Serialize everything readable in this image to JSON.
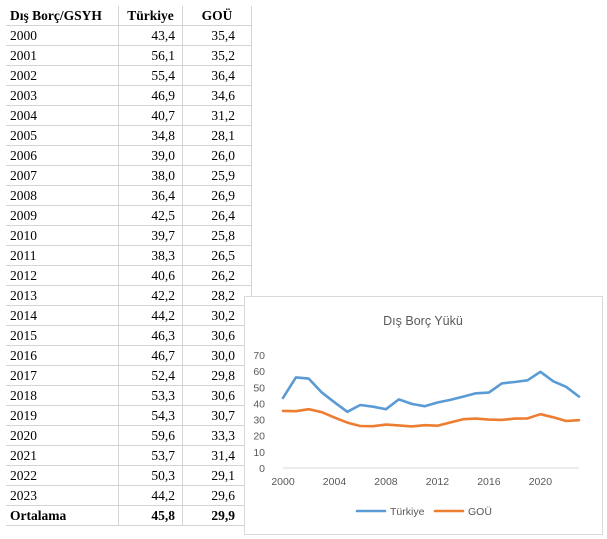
{
  "table": {
    "headers": [
      "Dış Borç/GSYH",
      "Türkiye",
      "GOÜ"
    ],
    "rows": [
      [
        "2000",
        "43,4",
        "35,4"
      ],
      [
        "2001",
        "56,1",
        "35,2"
      ],
      [
        "2002",
        "55,4",
        "36,4"
      ],
      [
        "2003",
        "46,9",
        "34,6"
      ],
      [
        "2004",
        "40,7",
        "31,2"
      ],
      [
        "2005",
        "34,8",
        "28,1"
      ],
      [
        "2006",
        "39,0",
        "26,0"
      ],
      [
        "2007",
        "38,0",
        "25,9"
      ],
      [
        "2008",
        "36,4",
        "26,9"
      ],
      [
        "2009",
        "42,5",
        "26,4"
      ],
      [
        "2010",
        "39,7",
        "25,8"
      ],
      [
        "2011",
        "38,3",
        "26,5"
      ],
      [
        "2012",
        "40,6",
        "26,2"
      ],
      [
        "2013",
        "42,2",
        "28,2"
      ],
      [
        "2014",
        "44,2",
        "30,2"
      ],
      [
        "2015",
        "46,3",
        "30,6"
      ],
      [
        "2016",
        "46,7",
        "30,0"
      ],
      [
        "2017",
        "52,4",
        "29,8"
      ],
      [
        "2018",
        "53,3",
        "30,6"
      ],
      [
        "2019",
        "54,3",
        "30,7"
      ],
      [
        "2020",
        "59,6",
        "33,3"
      ],
      [
        "2021",
        "53,7",
        "31,4"
      ],
      [
        "2022",
        "50,3",
        "29,1"
      ],
      [
        "2023",
        "44,2",
        "29,6"
      ]
    ],
    "footer": [
      "Ortalama",
      "45,8",
      "29,9"
    ]
  },
  "chart_data": {
    "type": "line",
    "title": "Dış Borç Yükü",
    "xlabel": "",
    "ylabel": "",
    "x": [
      2000,
      2001,
      2002,
      2003,
      2004,
      2005,
      2006,
      2007,
      2008,
      2009,
      2010,
      2011,
      2012,
      2013,
      2014,
      2015,
      2016,
      2017,
      2018,
      2019,
      2020,
      2021,
      2022,
      2023
    ],
    "xlim": [
      2000,
      2023
    ],
    "xticks": [
      "2000",
      "2004",
      "2008",
      "2012",
      "2016",
      "2020"
    ],
    "ylim": [
      0,
      70
    ],
    "yticks": [
      "0",
      "10",
      "20",
      "30",
      "40",
      "50",
      "60",
      "70"
    ],
    "grid": false,
    "legend": "bottom",
    "series": [
      {
        "name": "Türkiye",
        "color": "#5b9bd5",
        "values": [
          43.4,
          56.1,
          55.4,
          46.9,
          40.7,
          34.8,
          39.0,
          38.0,
          36.4,
          42.5,
          39.7,
          38.3,
          40.6,
          42.2,
          44.2,
          46.3,
          46.7,
          52.4,
          53.3,
          54.3,
          59.6,
          53.7,
          50.3,
          44.2
        ]
      },
      {
        "name": "GOÜ",
        "color": "#ed7d31",
        "values": [
          35.4,
          35.2,
          36.4,
          34.6,
          31.2,
          28.1,
          26.0,
          25.9,
          26.9,
          26.4,
          25.8,
          26.5,
          26.2,
          28.2,
          30.2,
          30.6,
          30.0,
          29.8,
          30.6,
          30.7,
          33.3,
          31.4,
          29.1,
          29.6
        ]
      }
    ]
  }
}
